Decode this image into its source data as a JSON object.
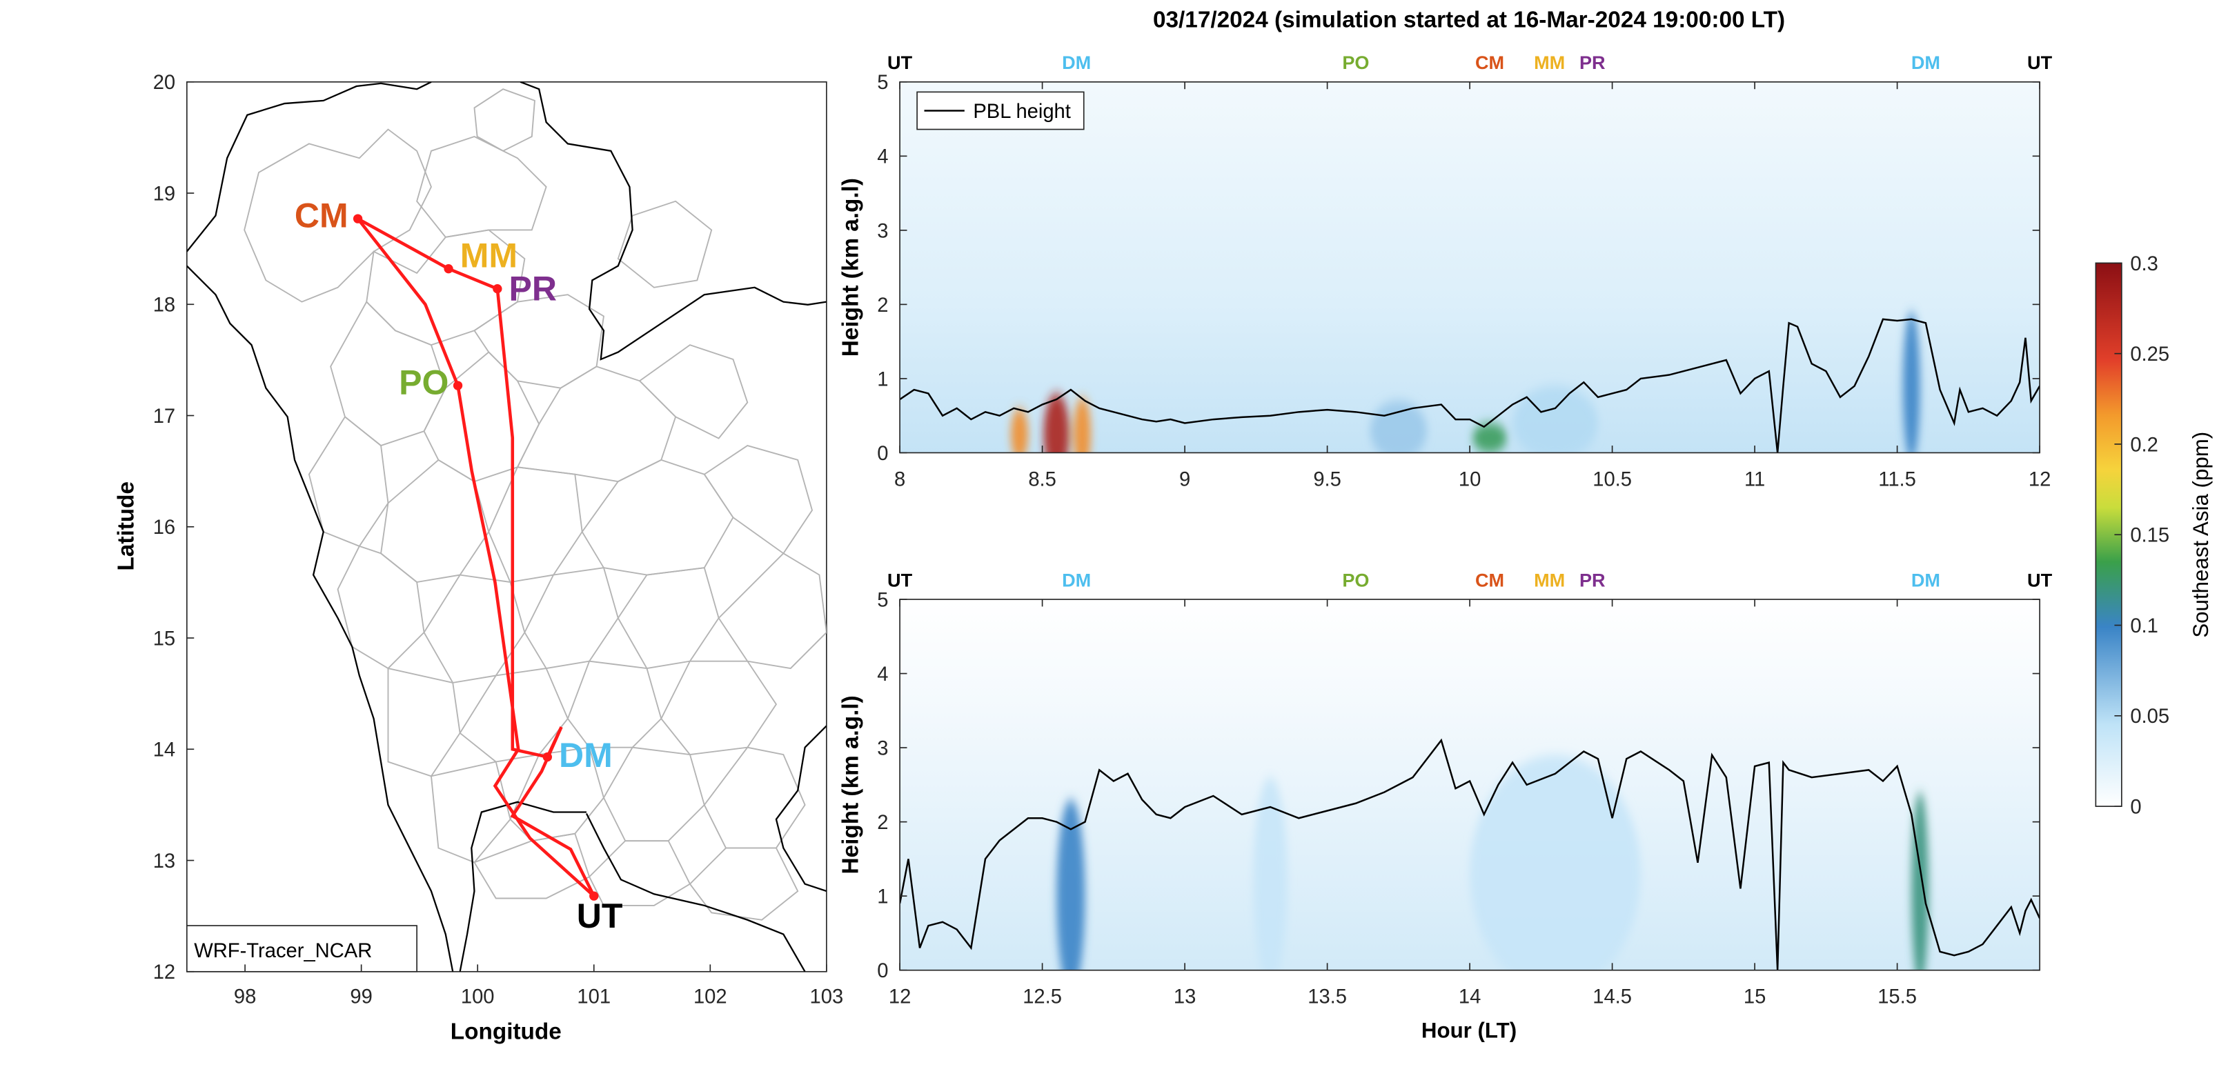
{
  "figure_title": "03/17/2024 (simulation started at 16-Mar-2024 19:00:00 LT)",
  "colors": {
    "CM": "#d95319",
    "MM": "#edb120",
    "PR": "#7e2f8e",
    "PO": "#77ac30",
    "DM": "#4dbeee",
    "UT": "#000000",
    "route": "#ff1a1a",
    "pbl": "#000000",
    "map_borders": "#b4b4b4",
    "map_coast": "#000000"
  },
  "map": {
    "xlabel": "Longitude",
    "ylabel": "Latitude",
    "xlim": [
      97.5,
      103
    ],
    "ylim": [
      12,
      20
    ],
    "xticks": [
      "98",
      "99",
      "100",
      "101",
      "102",
      "103"
    ],
    "yticks": [
      "12",
      "13",
      "14",
      "15",
      "16",
      "17",
      "18",
      "19",
      "20"
    ],
    "model_label": "WRF-Tracer_NCAR",
    "stations": [
      {
        "name": "CM",
        "lon": 98.97,
        "lat": 18.77
      },
      {
        "name": "MM",
        "lon": 99.75,
        "lat": 18.32
      },
      {
        "name": "PR",
        "lon": 100.17,
        "lat": 18.14
      },
      {
        "name": "PO",
        "lon": 99.83,
        "lat": 17.27
      },
      {
        "name": "DM",
        "lon": 100.6,
        "lat": 13.93
      },
      {
        "name": "UT",
        "lon": 101.0,
        "lat": 12.68
      }
    ],
    "route_out": [
      [
        101.0,
        12.68
      ],
      [
        100.45,
        13.2
      ],
      [
        100.15,
        13.67
      ],
      [
        100.35,
        14.0
      ],
      [
        100.15,
        15.5
      ],
      [
        99.95,
        16.5
      ],
      [
        99.83,
        17.27
      ],
      [
        99.55,
        18.0
      ],
      [
        98.97,
        18.77
      ],
      [
        99.75,
        18.32
      ],
      [
        100.17,
        18.14
      ],
      [
        100.3,
        16.8
      ],
      [
        100.3,
        15.0
      ],
      [
        100.3,
        14.0
      ],
      [
        100.6,
        13.93
      ]
    ],
    "route_back": [
      [
        100.6,
        13.93
      ],
      [
        100.72,
        14.2
      ],
      [
        100.55,
        13.8
      ],
      [
        100.3,
        13.4
      ],
      [
        100.8,
        13.1
      ],
      [
        101.0,
        12.68
      ]
    ]
  },
  "chart_data": [
    {
      "type": "heatmap",
      "title": "",
      "xlabel": "",
      "ylabel": "Height (km a.g.l)",
      "xlim": [
        8,
        12
      ],
      "ylim": [
        0,
        5
      ],
      "xticks": [
        "8",
        "8.5",
        "9",
        "9.5",
        "10",
        "10.5",
        "11",
        "11.5",
        "12"
      ],
      "yticks": [
        "0",
        "1",
        "2",
        "3",
        "4",
        "5"
      ],
      "legend": [
        "PBL height"
      ],
      "legend_position": "top-left",
      "station_markers": [
        {
          "label": "UT",
          "x": 8.0
        },
        {
          "label": "DM",
          "x": 8.62
        },
        {
          "label": "PO",
          "x": 9.6
        },
        {
          "label": "CM",
          "x": 10.07
        },
        {
          "label": "MM",
          "x": 10.3
        },
        {
          "label": "PR",
          "x": 10.41
        },
        {
          "label": "DM",
          "x": 11.6
        },
        {
          "label": "UT",
          "x": 12.0
        }
      ],
      "pbl_height": {
        "x": [
          8.0,
          8.05,
          8.1,
          8.15,
          8.2,
          8.25,
          8.3,
          8.35,
          8.4,
          8.45,
          8.5,
          8.55,
          8.6,
          8.65,
          8.7,
          8.75,
          8.8,
          8.85,
          8.9,
          8.95,
          9.0,
          9.1,
          9.2,
          9.3,
          9.4,
          9.5,
          9.6,
          9.7,
          9.8,
          9.9,
          9.95,
          10.0,
          10.05,
          10.1,
          10.15,
          10.2,
          10.25,
          10.3,
          10.35,
          10.4,
          10.45,
          10.5,
          10.55,
          10.6,
          10.7,
          10.8,
          10.9,
          10.95,
          11.0,
          11.05,
          11.08,
          11.1,
          11.12,
          11.15,
          11.2,
          11.25,
          11.3,
          11.35,
          11.4,
          11.45,
          11.5,
          11.55,
          11.6,
          11.65,
          11.7,
          11.72,
          11.75,
          11.8,
          11.85,
          11.9,
          11.93,
          11.95,
          11.97,
          12.0
        ],
        "y": [
          0.72,
          0.85,
          0.8,
          0.5,
          0.6,
          0.45,
          0.55,
          0.5,
          0.6,
          0.55,
          0.65,
          0.72,
          0.85,
          0.7,
          0.6,
          0.55,
          0.5,
          0.45,
          0.42,
          0.45,
          0.4,
          0.45,
          0.48,
          0.5,
          0.55,
          0.58,
          0.55,
          0.5,
          0.6,
          0.65,
          0.45,
          0.45,
          0.35,
          0.5,
          0.65,
          0.75,
          0.55,
          0.6,
          0.8,
          0.95,
          0.75,
          0.8,
          0.85,
          1.0,
          1.05,
          1.15,
          1.25,
          0.8,
          1.0,
          1.1,
          0.0,
          0.9,
          1.75,
          1.7,
          1.2,
          1.1,
          0.75,
          0.9,
          1.3,
          1.8,
          1.78,
          1.8,
          1.75,
          0.85,
          0.4,
          0.85,
          0.55,
          0.6,
          0.5,
          0.7,
          0.95,
          1.55,
          0.7,
          0.9
        ]
      },
      "tracer_sources": [
        {
          "x": 8.55,
          "y": 0.25,
          "wx": 0.045,
          "wy": 0.55,
          "value": 0.28
        },
        {
          "x": 8.42,
          "y": 0.25,
          "wx": 0.03,
          "wy": 0.35,
          "value": 0.22
        },
        {
          "x": 8.64,
          "y": 0.25,
          "wx": 0.03,
          "wy": 0.5,
          "value": 0.22
        },
        {
          "x": 10.07,
          "y": 0.2,
          "wx": 0.06,
          "wy": 0.2,
          "value": 0.13
        },
        {
          "x": 11.55,
          "y": 0.9,
          "wx": 0.03,
          "wy": 1.0,
          "value": 0.1
        },
        {
          "x": 9.75,
          "y": 0.3,
          "wx": 0.1,
          "wy": 0.4,
          "value": 0.06
        },
        {
          "x": 10.3,
          "y": 0.4,
          "wx": 0.15,
          "wy": 0.5,
          "value": 0.05
        }
      ]
    },
    {
      "type": "heatmap",
      "title": "",
      "xlabel": "Hour (LT)",
      "ylabel": "Height (km a.g.l)",
      "xlim": [
        12,
        16
      ],
      "ylim": [
        0,
        5
      ],
      "xticks": [
        "12",
        "12.5",
        "13",
        "13.5",
        "14",
        "14.5",
        "15",
        "15.5"
      ],
      "yticks": [
        "0",
        "1",
        "2",
        "3",
        "4",
        "5"
      ],
      "station_markers": [
        {
          "label": "UT",
          "x": 12.0
        },
        {
          "label": "DM",
          "x": 12.62
        },
        {
          "label": "PO",
          "x": 13.6
        },
        {
          "label": "CM",
          "x": 14.07
        },
        {
          "label": "MM",
          "x": 14.3
        },
        {
          "label": "PR",
          "x": 14.41
        },
        {
          "label": "DM",
          "x": 15.6
        },
        {
          "label": "UT",
          "x": 16.0
        }
      ],
      "pbl_height": {
        "x": [
          12.0,
          12.03,
          12.07,
          12.1,
          12.15,
          12.2,
          12.25,
          12.3,
          12.35,
          12.4,
          12.45,
          12.5,
          12.55,
          12.6,
          12.65,
          12.7,
          12.75,
          12.8,
          12.85,
          12.9,
          12.95,
          13.0,
          13.1,
          13.2,
          13.3,
          13.4,
          13.5,
          13.6,
          13.7,
          13.8,
          13.9,
          13.95,
          14.0,
          14.05,
          14.1,
          14.15,
          14.2,
          14.3,
          14.4,
          14.45,
          14.5,
          14.55,
          14.6,
          14.7,
          14.75,
          14.8,
          14.85,
          14.9,
          14.95,
          15.0,
          15.05,
          15.08,
          15.1,
          15.12,
          15.2,
          15.3,
          15.4,
          15.45,
          15.5,
          15.55,
          15.6,
          15.65,
          15.7,
          15.75,
          15.8,
          15.85,
          15.9,
          15.93,
          15.95,
          15.97,
          16.0
        ],
        "y": [
          0.9,
          1.5,
          0.3,
          0.6,
          0.65,
          0.55,
          0.3,
          1.5,
          1.75,
          1.9,
          2.05,
          2.05,
          2.0,
          1.9,
          2.0,
          2.7,
          2.55,
          2.65,
          2.3,
          2.1,
          2.05,
          2.2,
          2.35,
          2.1,
          2.2,
          2.05,
          2.15,
          2.25,
          2.4,
          2.6,
          3.1,
          2.45,
          2.55,
          2.1,
          2.5,
          2.8,
          2.5,
          2.65,
          2.95,
          2.85,
          2.05,
          2.85,
          2.95,
          2.7,
          2.55,
          1.45,
          2.9,
          2.6,
          1.1,
          2.75,
          2.8,
          0.0,
          2.8,
          2.7,
          2.6,
          2.65,
          2.7,
          2.55,
          2.75,
          2.1,
          0.9,
          0.25,
          0.2,
          0.25,
          0.35,
          0.6,
          0.85,
          0.5,
          0.8,
          0.95,
          0.7
        ]
      },
      "tracer_sources": [
        {
          "x": 12.6,
          "y": 1.0,
          "wx": 0.05,
          "wy": 1.3,
          "value": 0.1
        },
        {
          "x": 15.58,
          "y": 1.1,
          "wx": 0.03,
          "wy": 1.3,
          "value": 0.12
        },
        {
          "x": 13.3,
          "y": 1.2,
          "wx": 0.06,
          "wy": 1.4,
          "value": 0.04
        },
        {
          "x": 14.3,
          "y": 1.3,
          "wx": 0.3,
          "wy": 1.6,
          "value": 0.04
        }
      ]
    }
  ],
  "colorbar": {
    "label": "Southeast Asia (ppm)",
    "range": [
      0,
      0.3
    ],
    "ticks": [
      "0",
      "0.05",
      "0.1",
      "0.15",
      "0.2",
      "0.25",
      "0.3"
    ]
  }
}
